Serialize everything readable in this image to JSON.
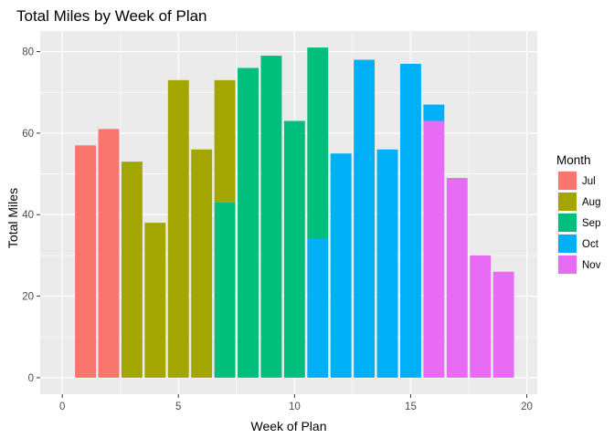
{
  "chart_data": {
    "type": "bar",
    "stacked": true,
    "title": "Total Miles by Week of Plan",
    "xlabel": "Week of Plan",
    "ylabel": "Total Miles",
    "xlim": [
      -0.95,
      20.45
    ],
    "ylim": [
      -4.05,
      85.05
    ],
    "x_ticks": [
      0,
      5,
      10,
      15,
      20
    ],
    "y_ticks": [
      0,
      20,
      40,
      60,
      80
    ],
    "x_tick_labels": [
      "0",
      "5",
      "10",
      "15",
      "20"
    ],
    "y_tick_labels": [
      "0",
      "20",
      "40",
      "60",
      "80"
    ],
    "grid": true,
    "legend_title": "Month",
    "legend_position": "right",
    "series": [
      {
        "name": "Jul",
        "color": "#F8766D",
        "points": [
          {
            "x": 1,
            "y": 57
          },
          {
            "x": 2,
            "y": 61
          }
        ]
      },
      {
        "name": "Aug",
        "color": "#A3A500",
        "points": [
          {
            "x": 3,
            "y": 53
          },
          {
            "x": 4,
            "y": 38
          },
          {
            "x": 5,
            "y": 73
          },
          {
            "x": 6,
            "y": 56
          },
          {
            "x": 7,
            "y": 30
          }
        ]
      },
      {
        "name": "Sep",
        "color": "#00BF7D",
        "points": [
          {
            "x": 7,
            "y": 43
          },
          {
            "x": 8,
            "y": 76
          },
          {
            "x": 9,
            "y": 79
          },
          {
            "x": 10,
            "y": 63
          },
          {
            "x": 11,
            "y": 47
          }
        ]
      },
      {
        "name": "Oct",
        "color": "#00B0F6",
        "points": [
          {
            "x": 11,
            "y": 34
          },
          {
            "x": 12,
            "y": 55
          },
          {
            "x": 13,
            "y": 78
          },
          {
            "x": 14,
            "y": 56
          },
          {
            "x": 15,
            "y": 77
          },
          {
            "x": 16,
            "y": 4
          }
        ]
      },
      {
        "name": "Nov",
        "color": "#E76BF3",
        "points": [
          {
            "x": 16,
            "y": 63
          },
          {
            "x": 17,
            "y": 49
          },
          {
            "x": 18,
            "y": 30
          },
          {
            "x": 19,
            "y": 26
          }
        ]
      }
    ]
  }
}
